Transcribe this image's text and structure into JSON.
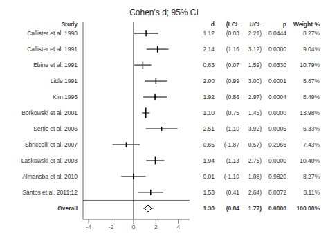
{
  "chart_data": {
    "type": "forest",
    "title": "Cohen's d; 95% CI",
    "row_header": "Study",
    "categories": [
      "Callister et al. 1990",
      "Callister et al. 1991",
      "Ebine et al. 1991",
      "Little 1991",
      "Kim 1996",
      "Borkowski et al. 2001",
      "Sertic et al. 2006",
      "Sbriccolli et al. 2007",
      "Laskowski et al. 2008",
      "Almansba et al. 2010",
      "Santos et al. 2011;12",
      "Overall"
    ],
    "values": [
      1.12,
      2.14,
      0.83,
      2.0,
      1.92,
      1.1,
      2.51,
      -0.65,
      1.94,
      -0.01,
      1.53,
      1.3
    ],
    "lcl": [
      0.03,
      1.16,
      0.07,
      0.99,
      0.86,
      0.75,
      1.1,
      -1.87,
      1.13,
      -1.1,
      0.41,
      0.84
    ],
    "ucl": [
      2.21,
      3.12,
      1.59,
      3.0,
      2.97,
      1.45,
      3.92,
      0.57,
      2.75,
      1.08,
      2.64,
      1.77
    ],
    "weights": [
      8.27,
      9.04,
      10.79,
      8.87,
      8.49,
      13.98,
      6.33,
      7.43,
      10.4,
      8.27,
      8.11,
      100.0
    ],
    "xlim": [
      -4.5,
      5.0
    ],
    "xticks": [
      -4,
      -2,
      0,
      2,
      4
    ],
    "grid": false,
    "table": {
      "columns": [
        "d",
        "(LCL",
        "UCL",
        "p",
        "Weight %"
      ],
      "rows": [
        [
          "1.12",
          "(0.03",
          "2.21)",
          "0.0444",
          "8.27%"
        ],
        [
          "2.14",
          "(1.16",
          "3.12)",
          "0.0000",
          "9.04%"
        ],
        [
          "0.83",
          "(0.07",
          "1.59)",
          "0.0330",
          "10.79%"
        ],
        [
          "2.00",
          "(0.99",
          "3.00)",
          "0.0001",
          "8.87%"
        ],
        [
          "1.92",
          "(0.86",
          "2.97)",
          "0.0004",
          "8.49%"
        ],
        [
          "1.10",
          "(0.75",
          "1.45)",
          "0.0000",
          "13.98%"
        ],
        [
          "2.51",
          "(1.10",
          "3.92)",
          "0.0005",
          "6.33%"
        ],
        [
          "-0.65",
          "(-1.87",
          "0.57)",
          "0.2966",
          "7.43%"
        ],
        [
          "1.94",
          "(1.13",
          "2.75)",
          "0.0000",
          "10.40%"
        ],
        [
          "-0.01",
          "(-1.10",
          "1.08)",
          "0.9820",
          "8.27%"
        ],
        [
          "1.53",
          "(0.41",
          "2.64)",
          "0.0072",
          "8.11%"
        ],
        [
          "1.30",
          "(0.84",
          "1.77)",
          "0.0000",
          "100.00%"
        ]
      ]
    }
  }
}
